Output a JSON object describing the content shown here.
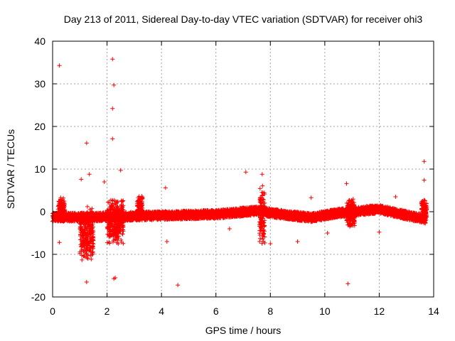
{
  "chart_data": {
    "type": "scatter",
    "title": "Day 213 of 2011, Sidereal Day-to-day VTEC variation (SDTVAR) for receiver ohi3",
    "xlabel": "GPS time / hours",
    "ylabel": "SDTVAR / TECUs",
    "xlim": [
      0,
      14
    ],
    "ylim": [
      -20,
      40
    ],
    "x_ticks": [
      0,
      2,
      4,
      6,
      8,
      10,
      12,
      14
    ],
    "y_ticks": [
      -20,
      -10,
      0,
      10,
      20,
      30,
      40
    ],
    "grid": true,
    "series": [
      {
        "name": "SDTVAR",
        "color": "#ff0000",
        "marker": "plus",
        "band": {
          "x_start": 0.0,
          "x_end": 13.7,
          "center": [
            [
              0,
              -1.3
            ],
            [
              2.0,
              -1.2
            ],
            [
              4.0,
              -0.9
            ],
            [
              6.0,
              -0.6
            ],
            [
              7.5,
              0.2
            ],
            [
              8.5,
              -0.7
            ],
            [
              9.5,
              -1.4
            ],
            [
              10.5,
              -0.3
            ],
            [
              12.0,
              0.6
            ],
            [
              13.7,
              -1.8
            ]
          ],
          "half_width": 1.0
        },
        "scatter_clusters": [
          {
            "x_start": 1.0,
            "x_end": 1.5,
            "y_min": -12.0,
            "y_max": 1.5
          },
          {
            "x_start": 2.0,
            "x_end": 2.6,
            "y_min": -8.0,
            "y_max": 3.5
          },
          {
            "x_start": 7.6,
            "x_end": 7.8,
            "y_min": -9.0,
            "y_max": 7.0
          },
          {
            "x_start": 0.2,
            "x_end": 0.45,
            "y_min": -2.5,
            "y_max": 3.5
          },
          {
            "x_start": 3.1,
            "x_end": 3.3,
            "y_min": -2.0,
            "y_max": 4.0
          },
          {
            "x_start": 10.8,
            "x_end": 11.1,
            "y_min": -4.0,
            "y_max": 3.0
          },
          {
            "x_start": 13.55,
            "x_end": 13.75,
            "y_min": -2.5,
            "y_max": 3.0
          }
        ],
        "outliers": [
          {
            "x": 0.25,
            "y": 34.3
          },
          {
            "x": 2.2,
            "y": 35.8
          },
          {
            "x": 2.25,
            "y": 29.7
          },
          {
            "x": 2.2,
            "y": 24.2
          },
          {
            "x": 2.2,
            "y": 17.1
          },
          {
            "x": 1.25,
            "y": 16.1
          },
          {
            "x": 2.5,
            "y": 9.7
          },
          {
            "x": 1.05,
            "y": 7.6
          },
          {
            "x": 1.35,
            "y": 8.8
          },
          {
            "x": 1.9,
            "y": 7.0
          },
          {
            "x": 7.1,
            "y": 9.3
          },
          {
            "x": 7.7,
            "y": 8.8
          },
          {
            "x": 13.65,
            "y": 11.8
          },
          {
            "x": 13.65,
            "y": 7.4
          },
          {
            "x": 4.15,
            "y": 5.6
          },
          {
            "x": 10.8,
            "y": 6.6
          },
          {
            "x": 0.25,
            "y": -7.2
          },
          {
            "x": 1.25,
            "y": -16.5
          },
          {
            "x": 2.3,
            "y": -15.5
          },
          {
            "x": 2.25,
            "y": -15.7
          },
          {
            "x": 4.6,
            "y": -17.2
          },
          {
            "x": 10.85,
            "y": -16.9
          },
          {
            "x": 9.0,
            "y": -7.0
          },
          {
            "x": 8.0,
            "y": -7.5
          },
          {
            "x": 12.0,
            "y": -4.8
          },
          {
            "x": 10.1,
            "y": -5.0
          },
          {
            "x": 6.5,
            "y": -4.0
          },
          {
            "x": 4.2,
            "y": -7.0
          },
          {
            "x": 9.5,
            "y": 3.3
          },
          {
            "x": 12.6,
            "y": 3.5
          }
        ]
      }
    ]
  }
}
